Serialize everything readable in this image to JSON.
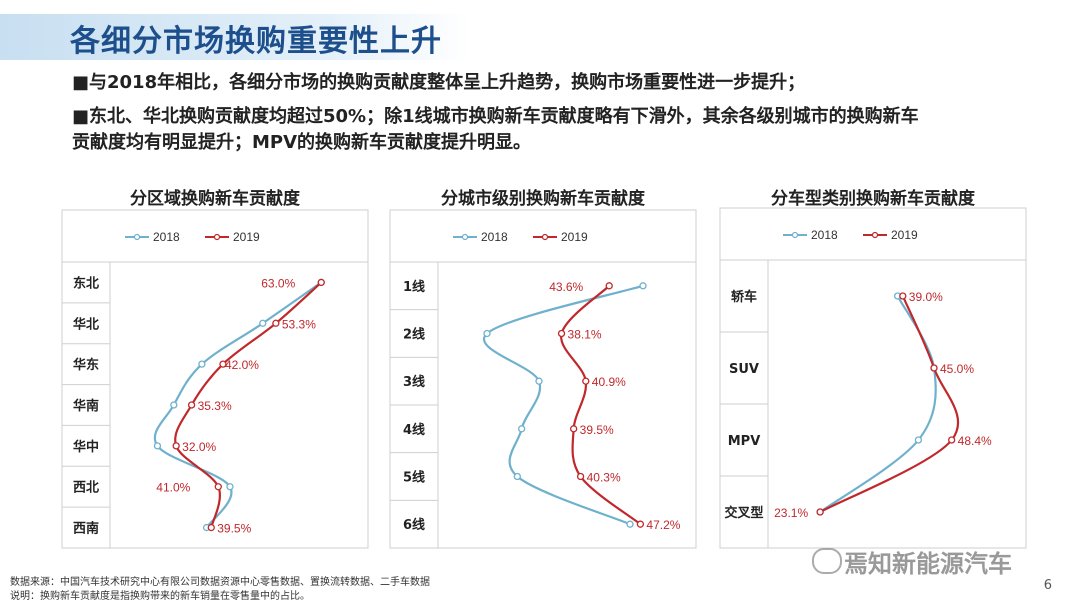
{
  "header": {
    "title": "各细分市场换购重要性上升",
    "bullet1": "■与2018年相比，各细分市场的换购贡献度整体呈上升趋势，换购市场重要性进一步提升；",
    "bullet2_line1": "■东北、华北换购贡献度均超过50%；除1线城市换购新车贡献度略有下滑外，其余各级别城市的换购新车",
    "bullet2_line2": "贡献度均有明显提升；MPV的换购新车贡献度提升明显。"
  },
  "colors": {
    "s2018": "#6fb1cd",
    "s2019": "#c0282b",
    "title": "#1d4f8c"
  },
  "chart_data": [
    {
      "type": "line",
      "orientation": "vertical-categories",
      "title": "分区域换购新车贡献度",
      "categories": [
        "东北",
        "华北",
        "华东",
        "华南",
        "华中",
        "西北",
        "西南"
      ],
      "series": [
        {
          "name": "2018",
          "values": [
            63.0,
            50.5,
            37.5,
            31.5,
            28.0,
            43.5,
            38.5
          ]
        },
        {
          "name": "2019",
          "values": [
            63.0,
            53.3,
            42.0,
            35.3,
            32.0,
            41.0,
            39.5
          ]
        }
      ],
      "labels": [
        "63.0%",
        "53.3%",
        "42.0%",
        "35.3%",
        "32.0%",
        "41.0%",
        "39.5%"
      ],
      "xlim": [
        20,
        70
      ],
      "legend": "top"
    },
    {
      "type": "line",
      "orientation": "vertical-categories",
      "title": "分城市级别换购新车贡献度",
      "categories": [
        "1线",
        "2线",
        "3线",
        "4线",
        "5线",
        "6线"
      ],
      "series": [
        {
          "name": "2018",
          "values": [
            47.5,
            29.5,
            35.5,
            33.5,
            33.0,
            46.0
          ]
        },
        {
          "name": "2019",
          "values": [
            43.6,
            38.1,
            40.9,
            39.5,
            40.3,
            47.2
          ]
        }
      ],
      "labels": [
        "43.6%",
        "38.1%",
        "40.9%",
        "39.5%",
        "40.3%",
        "47.2%"
      ],
      "xlim": [
        25,
        52
      ],
      "legend": "top"
    },
    {
      "type": "line",
      "orientation": "vertical-categories",
      "title": "分车型类别换购新车贡献度",
      "categories": [
        "轿车",
        "SUV",
        "MPV",
        "交叉型"
      ],
      "series": [
        {
          "name": "2018",
          "values": [
            38.0,
            45.0,
            42.0,
            23.1
          ]
        },
        {
          "name": "2019",
          "values": [
            39.0,
            45.0,
            48.4,
            23.1
          ]
        }
      ],
      "labels": [
        "39.0%",
        "45.0%",
        "48.4%",
        "23.1%"
      ],
      "xlim": [
        15,
        60
      ],
      "legend": "top"
    }
  ],
  "footer": {
    "source": "数据来源：中国汽车技术研究中心有限公司数据资源中心零售数据、置换流转数据、二手车数据",
    "note": "说明：换购新车贡献度是指换购带来的新车销量在零售量中的占比。",
    "page": "6",
    "watermark": "焉知新能源汽车"
  }
}
